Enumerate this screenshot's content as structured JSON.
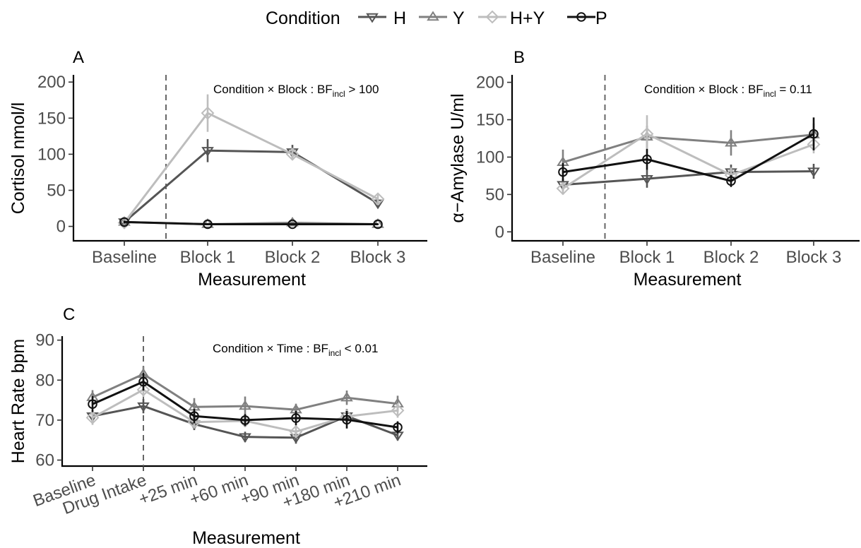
{
  "legend": {
    "title": "Condition",
    "entries": [
      {
        "key": "H",
        "label": "H"
      },
      {
        "key": "Y",
        "label": "Y"
      },
      {
        "key": "HY",
        "label": "H+Y"
      },
      {
        "key": "P",
        "label": "P"
      }
    ],
    "position": "top"
  },
  "styles": {
    "H": {
      "color": "#555555",
      "marker": "triangle-down"
    },
    "Y": {
      "color": "#808080",
      "marker": "triangle-up"
    },
    "HY": {
      "color": "#bdbdbd",
      "marker": "diamond"
    },
    "P": {
      "color": "#111111",
      "marker": "circle"
    }
  },
  "chart_data": [
    {
      "panel": "A",
      "type": "line",
      "title": "",
      "xlabel": "Measurement",
      "ylabel": "Cortisol nmol/l",
      "categories": [
        "Baseline",
        "Block 1",
        "Block 2",
        "Block 3"
      ],
      "ylim": [
        -20,
        210
      ],
      "yticks": [
        0,
        50,
        100,
        150,
        200
      ],
      "dashed_line_after": "Baseline",
      "annotation": {
        "prefix": "Condition × Block :  BF",
        "sub": "incl",
        "suffix": " > 100"
      },
      "series": [
        {
          "name": "H",
          "values": [
            6,
            105,
            103,
            32
          ],
          "err": [
            2,
            16,
            10,
            6
          ]
        },
        {
          "name": "Y",
          "values": [
            6,
            3,
            5,
            3
          ],
          "err": [
            2,
            1,
            2,
            1
          ]
        },
        {
          "name": "H+Y",
          "values": [
            5,
            157,
            100,
            38
          ],
          "err": [
            2,
            26,
            8,
            6
          ]
        },
        {
          "name": "P",
          "values": [
            6,
            3,
            3,
            3
          ],
          "err": [
            2,
            1,
            1,
            1
          ]
        }
      ]
    },
    {
      "panel": "B",
      "type": "line",
      "title": "",
      "xlabel": "Measurement",
      "ylabel": "α−Amylase U/ml",
      "categories": [
        "Baseline",
        "Block 1",
        "Block 2",
        "Block 3"
      ],
      "ylim": [
        -12,
        210
      ],
      "yticks": [
        0,
        50,
        100,
        150,
        200
      ],
      "dashed_line_after": "Baseline",
      "annotation": {
        "prefix": "Condition × Block :  BF",
        "sub": "incl",
        "suffix": " = 0.11"
      },
      "series": [
        {
          "name": "H",
          "values": [
            63,
            71,
            80,
            81
          ],
          "err": [
            8,
            12,
            10,
            10
          ]
        },
        {
          "name": "Y",
          "values": [
            93,
            127,
            119,
            130
          ],
          "err": [
            17,
            15,
            17,
            15
          ]
        },
        {
          "name": "H+Y",
          "values": [
            58,
            131,
            76,
            117
          ],
          "err": [
            8,
            25,
            10,
            12
          ]
        },
        {
          "name": "P",
          "values": [
            80,
            97,
            68,
            131
          ],
          "err": [
            12,
            14,
            8,
            22
          ]
        }
      ]
    },
    {
      "panel": "C",
      "type": "line",
      "title": "",
      "xlabel": "Measurement",
      "ylabel": "Heart Rate bpm",
      "categories": [
        "Baseline",
        "Drug Intake",
        "+25 min",
        "+60 min",
        "+90 min",
        "+180 min",
        "+210 min"
      ],
      "ylim": [
        58.5,
        91
      ],
      "yticks": [
        60,
        70,
        80,
        90
      ],
      "dashed_line_after": "Drug Intake",
      "annotation": {
        "prefix": "Condition × Time :  BF",
        "sub": "incl",
        "suffix": " < 0.01"
      },
      "series": [
        {
          "name": "H",
          "values": [
            71.0,
            73.5,
            69.0,
            65.8,
            65.6,
            71.0,
            66.2
          ],
          "err": [
            1.5,
            1.8,
            1.5,
            1.3,
            1.5,
            1.8,
            1.3
          ]
        },
        {
          "name": "Y",
          "values": [
            75.7,
            81.5,
            73.3,
            73.5,
            72.6,
            75.6,
            74.1
          ],
          "err": [
            1.8,
            2.0,
            2.2,
            2.4,
            1.5,
            1.8,
            2.0
          ]
        },
        {
          "name": "H+Y",
          "values": [
            70.6,
            77.6,
            69.5,
            69.8,
            67.1,
            70.9,
            72.4
          ],
          "err": [
            1.8,
            1.8,
            1.5,
            1.5,
            1.5,
            1.8,
            1.8
          ]
        },
        {
          "name": "P",
          "values": [
            74.0,
            79.6,
            71.0,
            70.0,
            70.5,
            70.1,
            68.2
          ],
          "err": [
            2.0,
            2.2,
            1.8,
            1.5,
            1.8,
            2.2,
            1.5
          ]
        }
      ]
    }
  ]
}
